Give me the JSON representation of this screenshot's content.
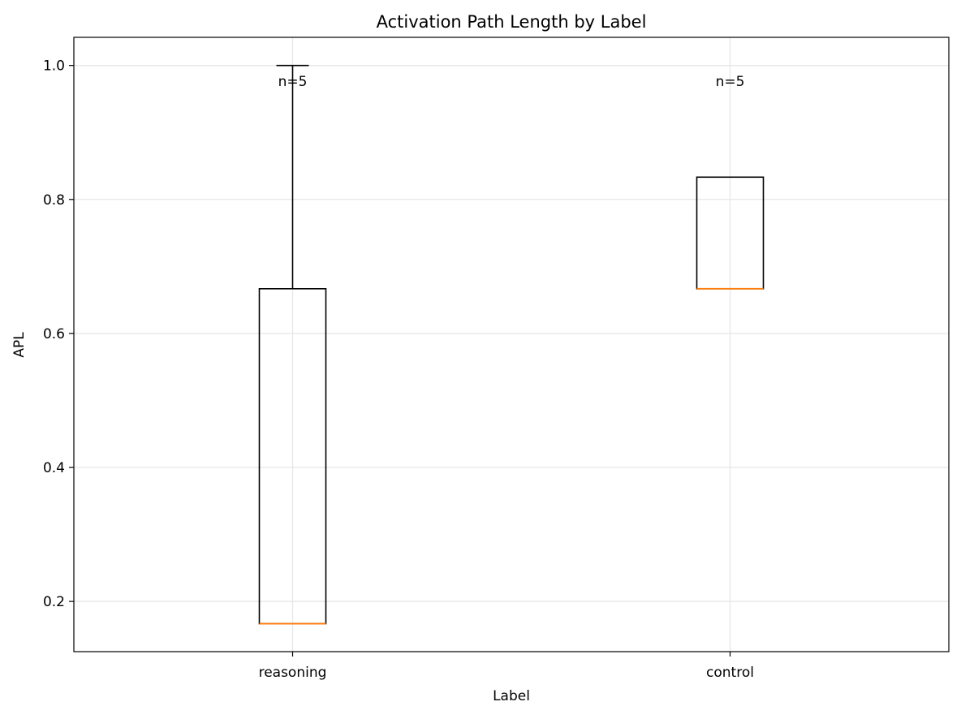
{
  "chart_data": {
    "type": "box",
    "title": "Activation Path Length by Label",
    "xlabel": "Label",
    "ylabel": "APL",
    "ylim": [
      0.125,
      1.042
    ],
    "yticks": [
      0.2,
      0.4,
      0.6,
      0.8,
      1.0
    ],
    "ytick_labels": [
      "0.2",
      "0.4",
      "0.6",
      "0.8",
      "1.0"
    ],
    "grid": true,
    "categories": [
      "reasoning",
      "control"
    ],
    "boxes": [
      {
        "category": "reasoning",
        "whisker_low": 0.1667,
        "q1": 0.1667,
        "median": 0.1667,
        "q3": 0.6667,
        "whisker_high": 1.0,
        "annotation": "n=5"
      },
      {
        "category": "control",
        "whisker_low": 0.6667,
        "q1": 0.6667,
        "median": 0.6667,
        "q3": 0.8333,
        "whisker_high": 0.8333,
        "annotation": "n=5"
      }
    ],
    "colors": {
      "box": "#000000",
      "median": "#ff7f0e",
      "grid": "#e6e6e6",
      "axes": "#000000"
    }
  }
}
